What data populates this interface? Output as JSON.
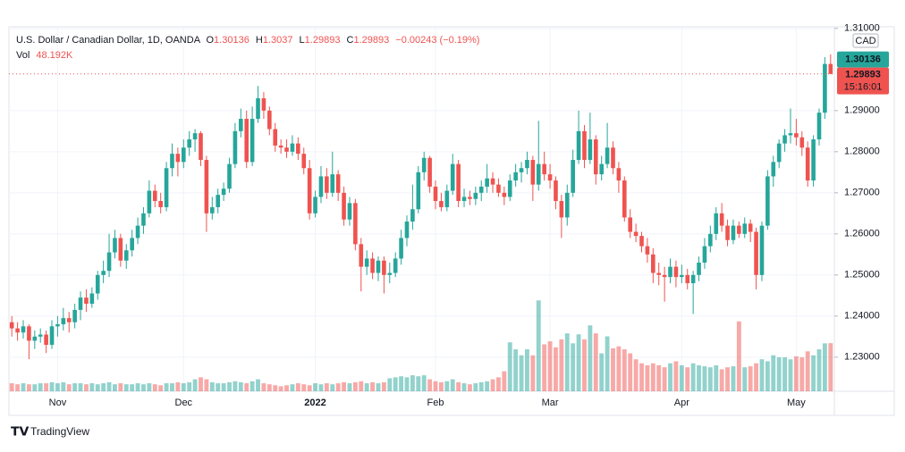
{
  "chart_data": {
    "type": "candlestick",
    "header": {
      "symbol": "U.S. Dollar / Canadian Dollar, 1D, OANDA",
      "o_label": "O",
      "h_label": "H",
      "l_label": "L",
      "c_label": "C",
      "change": "−0.00243 (−0.19%)",
      "vol_label": "Vol",
      "vol_value": "48.192K"
    },
    "currency": "CAD",
    "countdown": "15:16:01",
    "brand": "TradingView",
    "up_color": "#26a69a",
    "down_color": "#ef5350",
    "grid": true,
    "ylim": [
      1.2217,
      1.3104
    ],
    "yticks": [
      {
        "value": 1.23,
        "label": "1.23000"
      },
      {
        "value": 1.24,
        "label": "1.24000"
      },
      {
        "value": 1.25,
        "label": "1.25000"
      },
      {
        "value": 1.26,
        "label": "1.26000"
      },
      {
        "value": 1.27,
        "label": "1.27000"
      },
      {
        "value": 1.28,
        "label": "1.28000"
      },
      {
        "value": 1.29,
        "label": "1.29000"
      },
      {
        "value": 1.31,
        "label": "1.31000"
      }
    ],
    "vol_lim": [
      0,
      365
    ],
    "categories": [
      null,
      null,
      null,
      null,
      null,
      null,
      null,
      null,
      "Nov",
      null,
      null,
      null,
      null,
      null,
      null,
      null,
      null,
      null,
      null,
      null,
      null,
      null,
      null,
      null,
      null,
      null,
      null,
      null,
      null,
      null,
      "Dec",
      null,
      null,
      null,
      null,
      null,
      null,
      null,
      null,
      null,
      null,
      null,
      null,
      null,
      null,
      null,
      null,
      null,
      null,
      null,
      null,
      null,
      null,
      "2022",
      null,
      null,
      null,
      null,
      null,
      null,
      null,
      null,
      null,
      null,
      null,
      null,
      null,
      null,
      null,
      null,
      null,
      null,
      null,
      null,
      "Feb",
      null,
      null,
      null,
      null,
      null,
      null,
      null,
      null,
      null,
      null,
      null,
      null,
      null,
      null,
      null,
      null,
      null,
      null,
      null,
      "Mar",
      null,
      null,
      null,
      null,
      null,
      null,
      null,
      null,
      null,
      null,
      null,
      null,
      null,
      null,
      null,
      null,
      null,
      null,
      null,
      null,
      null,
      null,
      "Apr",
      null,
      null,
      null,
      null,
      null,
      null,
      null,
      null,
      null,
      null,
      null,
      null,
      null,
      null,
      null,
      null,
      null,
      null,
      null,
      "May",
      null,
      null,
      null,
      null,
      null,
      null
    ],
    "ohlc": [
      [
        1.2385,
        1.24,
        1.235,
        1.237
      ],
      [
        1.237,
        1.2385,
        1.234,
        1.236
      ],
      [
        1.236,
        1.239,
        1.2345,
        1.2375
      ],
      [
        1.2375,
        1.238,
        1.2295,
        1.234
      ],
      [
        1.234,
        1.2365,
        1.232,
        1.235
      ],
      [
        1.235,
        1.237,
        1.2335,
        1.2355
      ],
      [
        1.2355,
        1.2365,
        1.231,
        1.233
      ],
      [
        1.233,
        1.239,
        1.232,
        1.2375
      ],
      [
        1.2375,
        1.24,
        1.235,
        1.238
      ],
      [
        1.238,
        1.242,
        1.2365,
        1.2395
      ],
      [
        1.2395,
        1.241,
        1.236,
        1.2385
      ],
      [
        1.2385,
        1.243,
        1.237,
        1.2415
      ],
      [
        1.2415,
        1.246,
        1.239,
        1.2445
      ],
      [
        1.2445,
        1.2465,
        1.241,
        1.243
      ],
      [
        1.243,
        1.247,
        1.242,
        1.2455
      ],
      [
        1.2455,
        1.251,
        1.244,
        1.25
      ],
      [
        1.25,
        1.2535,
        1.248,
        1.251
      ],
      [
        1.251,
        1.26,
        1.2495,
        1.2555
      ],
      [
        1.2555,
        1.261,
        1.254,
        1.259
      ],
      [
        1.259,
        1.26,
        1.252,
        1.2535
      ],
      [
        1.2535,
        1.2575,
        1.2515,
        1.256
      ],
      [
        1.256,
        1.261,
        1.2545,
        1.259
      ],
      [
        1.259,
        1.264,
        1.2575,
        1.262
      ],
      [
        1.262,
        1.2665,
        1.26,
        1.265
      ],
      [
        1.265,
        1.273,
        1.264,
        1.2705
      ],
      [
        1.2705,
        1.272,
        1.2665,
        1.268
      ],
      [
        1.268,
        1.27,
        1.265,
        1.2665
      ],
      [
        1.2665,
        1.2775,
        1.2655,
        1.276
      ],
      [
        1.276,
        1.282,
        1.274,
        1.2795
      ],
      [
        1.2795,
        1.281,
        1.274,
        1.2775
      ],
      [
        1.2775,
        1.283,
        1.276,
        1.281
      ],
      [
        1.281,
        1.285,
        1.279,
        1.283
      ],
      [
        1.283,
        1.2855,
        1.28,
        1.2845
      ],
      [
        1.2845,
        1.285,
        1.2765,
        1.278
      ],
      [
        1.278,
        1.279,
        1.2605,
        1.265
      ],
      [
        1.265,
        1.269,
        1.2635,
        1.2665
      ],
      [
        1.2665,
        1.271,
        1.265,
        1.2695
      ],
      [
        1.2695,
        1.2725,
        1.268,
        1.271
      ],
      [
        1.271,
        1.2785,
        1.27,
        1.277
      ],
      [
        1.277,
        1.287,
        1.276,
        1.285
      ],
      [
        1.285,
        1.2905,
        1.2835,
        1.288
      ],
      [
        1.288,
        1.29,
        1.276,
        1.2775
      ],
      [
        1.2775,
        1.291,
        1.2765,
        1.288
      ],
      [
        1.288,
        1.296,
        1.287,
        1.293
      ],
      [
        1.293,
        1.2945,
        1.288,
        1.29
      ],
      [
        1.29,
        1.291,
        1.284,
        1.2855
      ],
      [
        1.2855,
        1.287,
        1.28,
        1.2815
      ],
      [
        1.2815,
        1.283,
        1.2795,
        1.281
      ],
      [
        1.281,
        1.283,
        1.2785,
        1.28
      ],
      [
        1.28,
        1.284,
        1.279,
        1.282
      ],
      [
        1.282,
        1.2835,
        1.278,
        1.2795
      ],
      [
        1.2795,
        1.281,
        1.2745,
        1.276
      ],
      [
        1.276,
        1.278,
        1.2635,
        1.265
      ],
      [
        1.265,
        1.2705,
        1.264,
        1.269
      ],
      [
        1.269,
        1.2765,
        1.2675,
        1.274
      ],
      [
        1.274,
        1.276,
        1.2685,
        1.27
      ],
      [
        1.27,
        1.28,
        1.269,
        1.2745
      ],
      [
        1.2745,
        1.2755,
        1.268,
        1.27
      ],
      [
        1.27,
        1.2715,
        1.262,
        1.2635
      ],
      [
        1.2635,
        1.269,
        1.262,
        1.2675
      ],
      [
        1.2675,
        1.2685,
        1.256,
        1.2575
      ],
      [
        1.2575,
        1.259,
        1.246,
        1.252
      ],
      [
        1.252,
        1.256,
        1.25,
        1.254
      ],
      [
        1.254,
        1.2555,
        1.249,
        1.2505
      ],
      [
        1.2505,
        1.2545,
        1.2485,
        1.2535
      ],
      [
        1.2535,
        1.2545,
        1.2455,
        1.25
      ],
      [
        1.25,
        1.253,
        1.248,
        1.2505
      ],
      [
        1.2505,
        1.2555,
        1.2495,
        1.254
      ],
      [
        1.254,
        1.261,
        1.2525,
        1.259
      ],
      [
        1.259,
        1.2645,
        1.257,
        1.263
      ],
      [
        1.263,
        1.272,
        1.261,
        1.266
      ],
      [
        1.266,
        1.2765,
        1.265,
        1.275
      ],
      [
        1.275,
        1.28,
        1.273,
        1.2785
      ],
      [
        1.2785,
        1.279,
        1.27,
        1.2715
      ],
      [
        1.2715,
        1.273,
        1.266,
        1.268
      ],
      [
        1.268,
        1.27,
        1.2655,
        1.2665
      ],
      [
        1.2665,
        1.272,
        1.2655,
        1.2705
      ],
      [
        1.2705,
        1.2795,
        1.2695,
        1.277
      ],
      [
        1.277,
        1.278,
        1.2665,
        1.268
      ],
      [
        1.268,
        1.271,
        1.2665,
        1.269
      ],
      [
        1.269,
        1.2705,
        1.267,
        1.2685
      ],
      [
        1.2685,
        1.2715,
        1.267,
        1.27
      ],
      [
        1.27,
        1.273,
        1.268,
        1.2715
      ],
      [
        1.2715,
        1.277,
        1.27,
        1.2735
      ],
      [
        1.2735,
        1.275,
        1.27,
        1.272
      ],
      [
        1.272,
        1.2735,
        1.269,
        1.27
      ],
      [
        1.27,
        1.2715,
        1.267,
        1.269
      ],
      [
        1.269,
        1.2745,
        1.268,
        1.273
      ],
      [
        1.273,
        1.277,
        1.2715,
        1.275
      ],
      [
        1.275,
        1.2775,
        1.2725,
        1.276
      ],
      [
        1.276,
        1.28,
        1.2745,
        1.278
      ],
      [
        1.278,
        1.279,
        1.268,
        1.272
      ],
      [
        1.272,
        1.2875,
        1.2705,
        1.277
      ],
      [
        1.277,
        1.28,
        1.273,
        1.2745
      ],
      [
        1.2745,
        1.277,
        1.271,
        1.273
      ],
      [
        1.273,
        1.274,
        1.266,
        1.268
      ],
      [
        1.268,
        1.2695,
        1.259,
        1.264
      ],
      [
        1.264,
        1.272,
        1.262,
        1.27
      ],
      [
        1.27,
        1.2805,
        1.269,
        1.278
      ],
      [
        1.278,
        1.29,
        1.277,
        1.285
      ],
      [
        1.285,
        1.2865,
        1.276,
        1.278
      ],
      [
        1.278,
        1.2895,
        1.277,
        1.283
      ],
      [
        1.283,
        1.284,
        1.272,
        1.2745
      ],
      [
        1.2745,
        1.279,
        1.273,
        1.277
      ],
      [
        1.277,
        1.287,
        1.276,
        1.281
      ],
      [
        1.281,
        1.2825,
        1.2745,
        1.276
      ],
      [
        1.276,
        1.2775,
        1.27,
        1.273
      ],
      [
        1.273,
        1.274,
        1.263,
        1.264
      ],
      [
        1.264,
        1.266,
        1.259,
        1.2605
      ],
      [
        1.2605,
        1.2625,
        1.258,
        1.2595
      ],
      [
        1.2595,
        1.2605,
        1.2555,
        1.257
      ],
      [
        1.257,
        1.259,
        1.253,
        1.255
      ],
      [
        1.255,
        1.2565,
        1.248,
        1.2505
      ],
      [
        1.2505,
        1.253,
        1.2475,
        1.25
      ],
      [
        1.25,
        1.252,
        1.2435,
        1.2495
      ],
      [
        1.2495,
        1.254,
        1.248,
        1.252
      ],
      [
        1.252,
        1.2535,
        1.247,
        1.2495
      ],
      [
        1.2495,
        1.2525,
        1.248,
        1.25
      ],
      [
        1.25,
        1.2515,
        1.2465,
        1.248
      ],
      [
        1.248,
        1.251,
        1.2405,
        1.25
      ],
      [
        1.25,
        1.2545,
        1.2485,
        1.253
      ],
      [
        1.253,
        1.259,
        1.2515,
        1.257
      ],
      [
        1.257,
        1.262,
        1.2555,
        1.26
      ],
      [
        1.26,
        1.2665,
        1.2585,
        1.265
      ],
      [
        1.265,
        1.2675,
        1.2605,
        1.262
      ],
      [
        1.262,
        1.2635,
        1.257,
        1.2585
      ],
      [
        1.2585,
        1.2635,
        1.2575,
        1.262
      ],
      [
        1.262,
        1.263,
        1.259,
        1.26
      ],
      [
        1.26,
        1.264,
        1.259,
        1.2625
      ],
      [
        1.2625,
        1.2635,
        1.258,
        1.2605
      ],
      [
        1.2605,
        1.2615,
        1.2465,
        1.25
      ],
      [
        1.25,
        1.263,
        1.2485,
        1.262
      ],
      [
        1.262,
        1.2755,
        1.261,
        1.274
      ],
      [
        1.274,
        1.279,
        1.2715,
        1.2775
      ],
      [
        1.2775,
        1.283,
        1.276,
        1.282
      ],
      [
        1.282,
        1.2855,
        1.28,
        1.284
      ],
      [
        1.284,
        1.2905,
        1.282,
        1.2845
      ],
      [
        1.2845,
        1.288,
        1.2815,
        1.2835
      ],
      [
        1.2835,
        1.285,
        1.279,
        1.281
      ],
      [
        1.281,
        1.2825,
        1.2715,
        1.273
      ],
      [
        1.273,
        1.284,
        1.2715,
        1.283
      ],
      [
        1.283,
        1.2905,
        1.2815,
        1.2895
      ],
      [
        1.2895,
        1.303,
        1.288,
        1.30136
      ],
      [
        1.30136,
        1.3037,
        1.29893,
        1.29893
      ]
    ],
    "volume": [
      8,
      7,
      8,
      7,
      7,
      8,
      8,
      9,
      8,
      9,
      7,
      8,
      8,
      7,
      8,
      7,
      8,
      9,
      7,
      8,
      7,
      7,
      8,
      7,
      8,
      7,
      6,
      8,
      8,
      9,
      8,
      9,
      12,
      14,
      12,
      9,
      8,
      8,
      9,
      10,
      9,
      8,
      10,
      12,
      8,
      7,
      6,
      5,
      6,
      7,
      8,
      7,
      6,
      8,
      7,
      8,
      7,
      8,
      9,
      8,
      9,
      10,
      8,
      9,
      8,
      9,
      13,
      14,
      15,
      14,
      16,
      15,
      16,
      12,
      10,
      9,
      10,
      12,
      9,
      8,
      7,
      8,
      9,
      10,
      12,
      14,
      20,
      49,
      42,
      36,
      42,
      36,
      91,
      47,
      50,
      44,
      52,
      58,
      48,
      57,
      52,
      66,
      58,
      38,
      55,
      43,
      45,
      42,
      38,
      32,
      28,
      26,
      28,
      26,
      24,
      28,
      30,
      26,
      24,
      28,
      26,
      25,
      24,
      26,
      22,
      24,
      25,
      70,
      24,
      25,
      28,
      32,
      30,
      36,
      34,
      34,
      32,
      35,
      34,
      40,
      36,
      42,
      48,
      48.192
    ]
  }
}
